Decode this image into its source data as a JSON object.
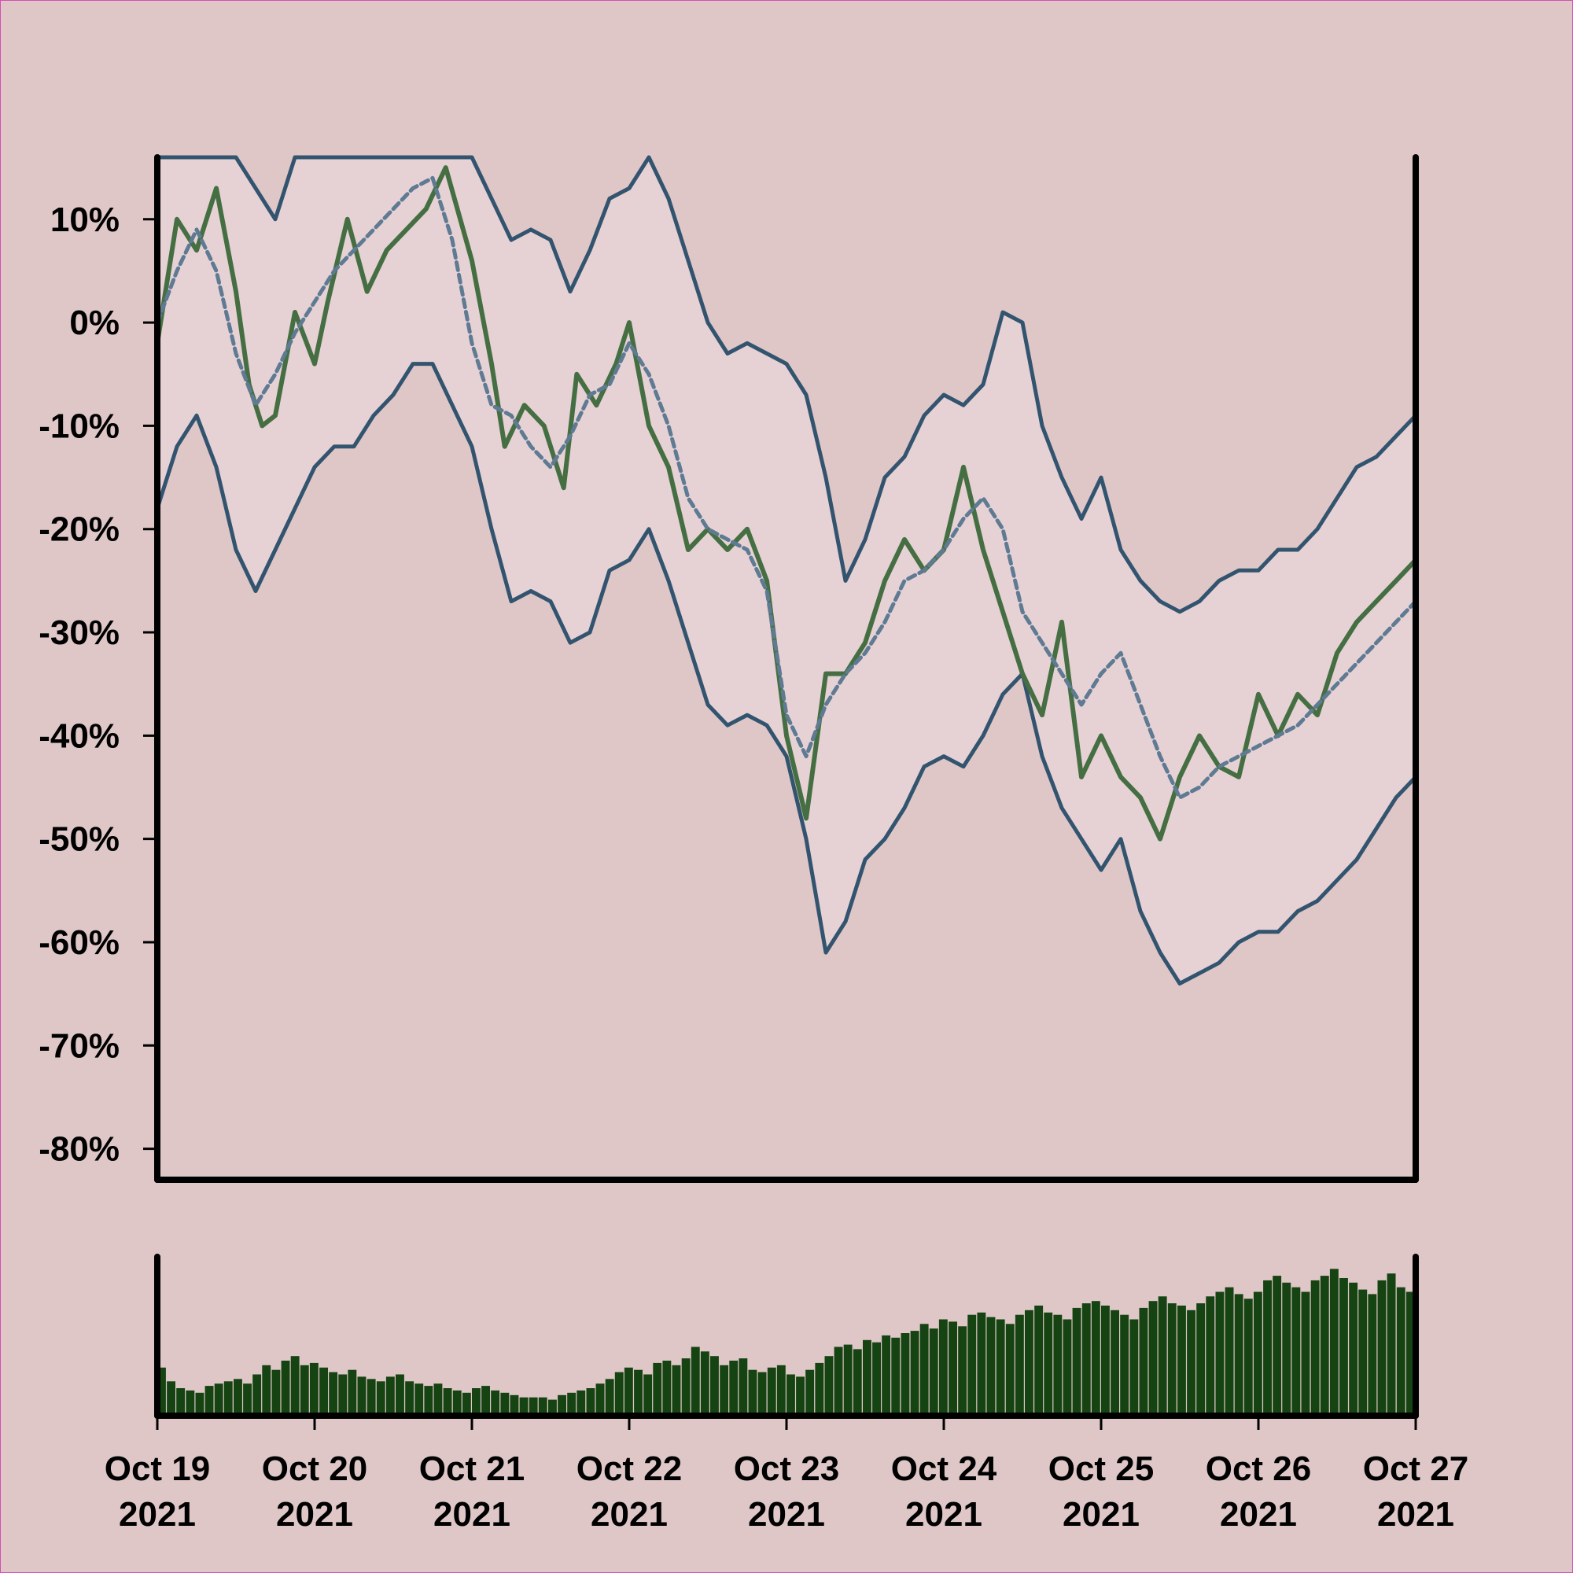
{
  "chart_data": [
    {
      "type": "line",
      "title": "",
      "xlabel": "",
      "ylabel": "",
      "x_range": [
        "2021-10-19",
        "2021-10-27"
      ],
      "ylim": [
        -83,
        16
      ],
      "y_ticks": [
        10,
        0,
        -10,
        -20,
        -30,
        -40,
        -50,
        -60,
        -70,
        -80
      ],
      "y_tick_labels": [
        "10%",
        "0%",
        "-10%",
        "-20%",
        "-30%",
        "-40%",
        "-50%",
        "-60%",
        "-70%",
        "-80%"
      ],
      "grid": false,
      "colors": {
        "price": "#456f43",
        "average": "#5f7a93",
        "band": "#33546f",
        "band_fill": "#e6d2d4",
        "volume": "#154312"
      },
      "series": [
        {
          "role": "price",
          "x": [
            "2021-10-19 00:00",
            "2021-10-19 03:00",
            "2021-10-19 06:00",
            "2021-10-19 09:00",
            "2021-10-19 12:00",
            "2021-10-19 14:00",
            "2021-10-19 16:00",
            "2021-10-19 18:00",
            "2021-10-19 21:00",
            "2021-10-20 00:00",
            "2021-10-20 02:00",
            "2021-10-20 05:00",
            "2021-10-20 08:00",
            "2021-10-20 11:00",
            "2021-10-20 14:00",
            "2021-10-20 17:00",
            "2021-10-20 20:00",
            "2021-10-21 00:00",
            "2021-10-21 03:00",
            "2021-10-21 05:00",
            "2021-10-21 08:00",
            "2021-10-21 11:00",
            "2021-10-21 14:00",
            "2021-10-21 16:00",
            "2021-10-21 19:00",
            "2021-10-21 22:00",
            "2021-10-22 00:00",
            "2021-10-22 03:00",
            "2021-10-22 06:00",
            "2021-10-22 09:00",
            "2021-10-22 12:00",
            "2021-10-22 15:00",
            "2021-10-22 18:00",
            "2021-10-22 21:00",
            "2021-10-23 00:00",
            "2021-10-23 03:00",
            "2021-10-23 06:00",
            "2021-10-23 09:00",
            "2021-10-23 12:00",
            "2021-10-23 15:00",
            "2021-10-23 18:00",
            "2021-10-23 21:00",
            "2021-10-24 00:00",
            "2021-10-24 03:00",
            "2021-10-24 06:00",
            "2021-10-24 09:00",
            "2021-10-24 12:00",
            "2021-10-24 15:00",
            "2021-10-24 18:00",
            "2021-10-24 21:00",
            "2021-10-25 00:00",
            "2021-10-25 03:00",
            "2021-10-25 06:00",
            "2021-10-25 09:00",
            "2021-10-25 12:00",
            "2021-10-25 15:00",
            "2021-10-25 18:00",
            "2021-10-25 21:00",
            "2021-10-26 00:00",
            "2021-10-26 03:00",
            "2021-10-26 06:00",
            "2021-10-26 09:00",
            "2021-10-26 12:00",
            "2021-10-26 15:00",
            "2021-10-26 18:00",
            "2021-10-26 21:00",
            "2021-10-27 00:00"
          ],
          "values": [
            -2,
            10,
            7,
            13,
            3,
            -6,
            -10,
            -9,
            1,
            -4,
            2,
            10,
            3,
            7,
            9,
            11,
            15,
            6,
            -4,
            -12,
            -8,
            -10,
            -16,
            -5,
            -8,
            -4,
            0,
            -10,
            -14,
            -22,
            -20,
            -22,
            -20,
            -25,
            -40,
            -48,
            -34,
            -34,
            -31,
            -25,
            -21,
            -24,
            -22,
            -14,
            -22,
            -28,
            -34,
            -38,
            -29,
            -44,
            -40,
            -44,
            -46,
            -50,
            -44,
            -40,
            -43,
            -44,
            -36,
            -40,
            -36,
            -38,
            -32,
            -29,
            -27,
            -25,
            -23
          ]
        },
        {
          "role": "average",
          "x": [
            "2021-10-19 00:00",
            "2021-10-19 03:00",
            "2021-10-19 06:00",
            "2021-10-19 09:00",
            "2021-10-19 12:00",
            "2021-10-19 15:00",
            "2021-10-19 18:00",
            "2021-10-19 21:00",
            "2021-10-20 00:00",
            "2021-10-20 03:00",
            "2021-10-20 06:00",
            "2021-10-20 09:00",
            "2021-10-20 12:00",
            "2021-10-20 15:00",
            "2021-10-20 18:00",
            "2021-10-20 21:00",
            "2021-10-21 00:00",
            "2021-10-21 03:00",
            "2021-10-21 06:00",
            "2021-10-21 09:00",
            "2021-10-21 12:00",
            "2021-10-21 15:00",
            "2021-10-21 18:00",
            "2021-10-21 21:00",
            "2021-10-22 00:00",
            "2021-10-22 03:00",
            "2021-10-22 06:00",
            "2021-10-22 09:00",
            "2021-10-22 12:00",
            "2021-10-22 15:00",
            "2021-10-22 18:00",
            "2021-10-22 21:00",
            "2021-10-23 00:00",
            "2021-10-23 03:00",
            "2021-10-23 06:00",
            "2021-10-23 09:00",
            "2021-10-23 12:00",
            "2021-10-23 15:00",
            "2021-10-23 18:00",
            "2021-10-23 21:00",
            "2021-10-24 00:00",
            "2021-10-24 03:00",
            "2021-10-24 06:00",
            "2021-10-24 09:00",
            "2021-10-24 12:00",
            "2021-10-24 15:00",
            "2021-10-24 18:00",
            "2021-10-24 21:00",
            "2021-10-25 00:00",
            "2021-10-25 03:00",
            "2021-10-25 06:00",
            "2021-10-25 09:00",
            "2021-10-25 12:00",
            "2021-10-25 15:00",
            "2021-10-25 18:00",
            "2021-10-25 21:00",
            "2021-10-26 00:00",
            "2021-10-26 03:00",
            "2021-10-26 06:00",
            "2021-10-26 09:00",
            "2021-10-26 12:00",
            "2021-10-26 15:00",
            "2021-10-26 18:00",
            "2021-10-26 21:00",
            "2021-10-27 00:00"
          ],
          "values": [
            0,
            5,
            9,
            5,
            -3,
            -8,
            -5,
            -1,
            2,
            5,
            7,
            9,
            11,
            13,
            14,
            8,
            -2,
            -8,
            -9,
            -12,
            -14,
            -11,
            -7,
            -6,
            -2,
            -5,
            -10,
            -17,
            -20,
            -21,
            -22,
            -26,
            -38,
            -42,
            -37,
            -34,
            -32,
            -29,
            -25,
            -24,
            -22,
            -19,
            -17,
            -20,
            -28,
            -31,
            -34,
            -37,
            -34,
            -32,
            -37,
            -42,
            -46,
            -45,
            -43,
            -42,
            -41,
            -40,
            -39,
            -37,
            -35,
            -33,
            -31,
            -29,
            -27
          ]
        },
        {
          "role": "upper band",
          "x": [
            "2021-10-19 00:00",
            "2021-10-19 06:00",
            "2021-10-19 12:00",
            "2021-10-19 15:00",
            "2021-10-19 18:00",
            "2021-10-19 21:00",
            "2021-10-20 00:00",
            "2021-10-20 06:00",
            "2021-10-20 12:00",
            "2021-10-20 18:00",
            "2021-10-21 00:00",
            "2021-10-21 03:00",
            "2021-10-21 06:00",
            "2021-10-21 09:00",
            "2021-10-21 12:00",
            "2021-10-21 15:00",
            "2021-10-21 18:00",
            "2021-10-21 21:00",
            "2021-10-22 00:00",
            "2021-10-22 03:00",
            "2021-10-22 06:00",
            "2021-10-22 09:00",
            "2021-10-22 12:00",
            "2021-10-22 15:00",
            "2021-10-22 18:00",
            "2021-10-22 21:00",
            "2021-10-23 00:00",
            "2021-10-23 03:00",
            "2021-10-23 06:00",
            "2021-10-23 09:00",
            "2021-10-23 12:00",
            "2021-10-23 15:00",
            "2021-10-23 18:00",
            "2021-10-23 21:00",
            "2021-10-24 00:00",
            "2021-10-24 03:00",
            "2021-10-24 06:00",
            "2021-10-24 09:00",
            "2021-10-24 12:00",
            "2021-10-24 15:00",
            "2021-10-24 18:00",
            "2021-10-24 21:00",
            "2021-10-25 00:00",
            "2021-10-25 03:00",
            "2021-10-25 06:00",
            "2021-10-25 09:00",
            "2021-10-25 12:00",
            "2021-10-25 15:00",
            "2021-10-25 18:00",
            "2021-10-25 21:00",
            "2021-10-26 00:00",
            "2021-10-26 03:00",
            "2021-10-26 06:00",
            "2021-10-26 09:00",
            "2021-10-26 12:00",
            "2021-10-26 15:00",
            "2021-10-26 18:00",
            "2021-10-26 21:00",
            "2021-10-27 00:00"
          ],
          "values": [
            16,
            16,
            16,
            13,
            10,
            16,
            16,
            16,
            16,
            16,
            16,
            12,
            8,
            9,
            8,
            3,
            7,
            12,
            13,
            16,
            12,
            6,
            0,
            -3,
            -2,
            -3,
            -4,
            -7,
            -15,
            -25,
            -21,
            -15,
            -13,
            -9,
            -7,
            -8,
            -6,
            1,
            0,
            -10,
            -15,
            -19,
            -15,
            -22,
            -25,
            -27,
            -28,
            -27,
            -25,
            -24,
            -24,
            -22,
            -22,
            -20,
            -17,
            -14,
            -13,
            -11,
            -9
          ]
        },
        {
          "role": "lower band",
          "x": [
            "2021-10-19 00:00",
            "2021-10-19 03:00",
            "2021-10-19 06:00",
            "2021-10-19 09:00",
            "2021-10-19 12:00",
            "2021-10-19 15:00",
            "2021-10-19 18:00",
            "2021-10-19 21:00",
            "2021-10-20 00:00",
            "2021-10-20 03:00",
            "2021-10-20 06:00",
            "2021-10-20 09:00",
            "2021-10-20 12:00",
            "2021-10-20 15:00",
            "2021-10-20 18:00",
            "2021-10-21 00:00",
            "2021-10-21 03:00",
            "2021-10-21 06:00",
            "2021-10-21 09:00",
            "2021-10-21 12:00",
            "2021-10-21 15:00",
            "2021-10-21 18:00",
            "2021-10-21 21:00",
            "2021-10-22 00:00",
            "2021-10-22 03:00",
            "2021-10-22 06:00",
            "2021-10-22 09:00",
            "2021-10-22 12:00",
            "2021-10-22 15:00",
            "2021-10-22 18:00",
            "2021-10-22 21:00",
            "2021-10-23 00:00",
            "2021-10-23 03:00",
            "2021-10-23 06:00",
            "2021-10-23 09:00",
            "2021-10-23 12:00",
            "2021-10-23 15:00",
            "2021-10-23 18:00",
            "2021-10-23 21:00",
            "2021-10-24 00:00",
            "2021-10-24 03:00",
            "2021-10-24 06:00",
            "2021-10-24 09:00",
            "2021-10-24 12:00",
            "2021-10-24 15:00",
            "2021-10-24 18:00",
            "2021-10-24 21:00",
            "2021-10-25 00:00",
            "2021-10-25 03:00",
            "2021-10-25 06:00",
            "2021-10-25 09:00",
            "2021-10-25 12:00",
            "2021-10-25 15:00",
            "2021-10-25 18:00",
            "2021-10-25 21:00",
            "2021-10-26 00:00",
            "2021-10-26 03:00",
            "2021-10-26 06:00",
            "2021-10-26 09:00",
            "2021-10-26 12:00",
            "2021-10-26 15:00",
            "2021-10-26 18:00",
            "2021-10-26 21:00",
            "2021-10-27 00:00"
          ],
          "values": [
            -18,
            -12,
            -9,
            -14,
            -22,
            -26,
            -22,
            -18,
            -14,
            -12,
            -12,
            -9,
            -7,
            -4,
            -4,
            -12,
            -20,
            -27,
            -26,
            -27,
            -31,
            -30,
            -24,
            -23,
            -20,
            -25,
            -31,
            -37,
            -39,
            -38,
            -39,
            -42,
            -50,
            -61,
            -58,
            -52,
            -50,
            -47,
            -43,
            -42,
            -43,
            -40,
            -36,
            -34,
            -42,
            -47,
            -50,
            -53,
            -50,
            -57,
            -61,
            -64,
            -63,
            -62,
            -60,
            -59,
            -59,
            -57,
            -56,
            -54,
            -52,
            -49,
            -46,
            -44
          ]
        }
      ]
    },
    {
      "type": "bar",
      "role": "volume",
      "x_range": [
        "2021-10-19",
        "2021-10-27"
      ],
      "x_ticks": [
        "Oct 19\n2021",
        "Oct 20\n2021",
        "Oct 21\n2021",
        "Oct 22\n2021",
        "Oct 23\n2021",
        "Oct 24\n2021",
        "Oct 25\n2021",
        "Oct 26\n2021",
        "Oct 27\n2021"
      ],
      "x_tick_lines": [
        [
          "Oct 19",
          "2021"
        ],
        [
          "Oct 20",
          "2021"
        ],
        [
          "Oct 21",
          "2021"
        ],
        [
          "Oct 22",
          "2021"
        ],
        [
          "Oct 23",
          "2021"
        ],
        [
          "Oct 24",
          "2021"
        ],
        [
          "Oct 25",
          "2021"
        ],
        [
          "Oct 26",
          "2021"
        ],
        [
          "Oct 27",
          "2021"
        ]
      ],
      "values": [
        42,
        30,
        24,
        22,
        20,
        26,
        28,
        30,
        32,
        28,
        36,
        44,
        40,
        48,
        52,
        44,
        46,
        42,
        38,
        36,
        40,
        34,
        32,
        30,
        34,
        36,
        30,
        28,
        26,
        28,
        24,
        22,
        20,
        24,
        26,
        22,
        20,
        18,
        16,
        16,
        16,
        14,
        18,
        20,
        22,
        24,
        28,
        32,
        38,
        42,
        40,
        36,
        46,
        48,
        44,
        50,
        60,
        56,
        52,
        44,
        48,
        50,
        40,
        38,
        42,
        44,
        36,
        34,
        40,
        46,
        52,
        60,
        62,
        58,
        66,
        64,
        70,
        68,
        72,
        74,
        80,
        76,
        84,
        82,
        78,
        88,
        90,
        86,
        84,
        80,
        88,
        92,
        96,
        90,
        88,
        84,
        94,
        98,
        100,
        96,
        92,
        88,
        84,
        94,
        100,
        104,
        98,
        96,
        92,
        98,
        104,
        108,
        112,
        106,
        102,
        108,
        118,
        122,
        116,
        112,
        108,
        118,
        122,
        128,
        120,
        116,
        110,
        106,
        118,
        124,
        112,
        108
      ]
    }
  ]
}
